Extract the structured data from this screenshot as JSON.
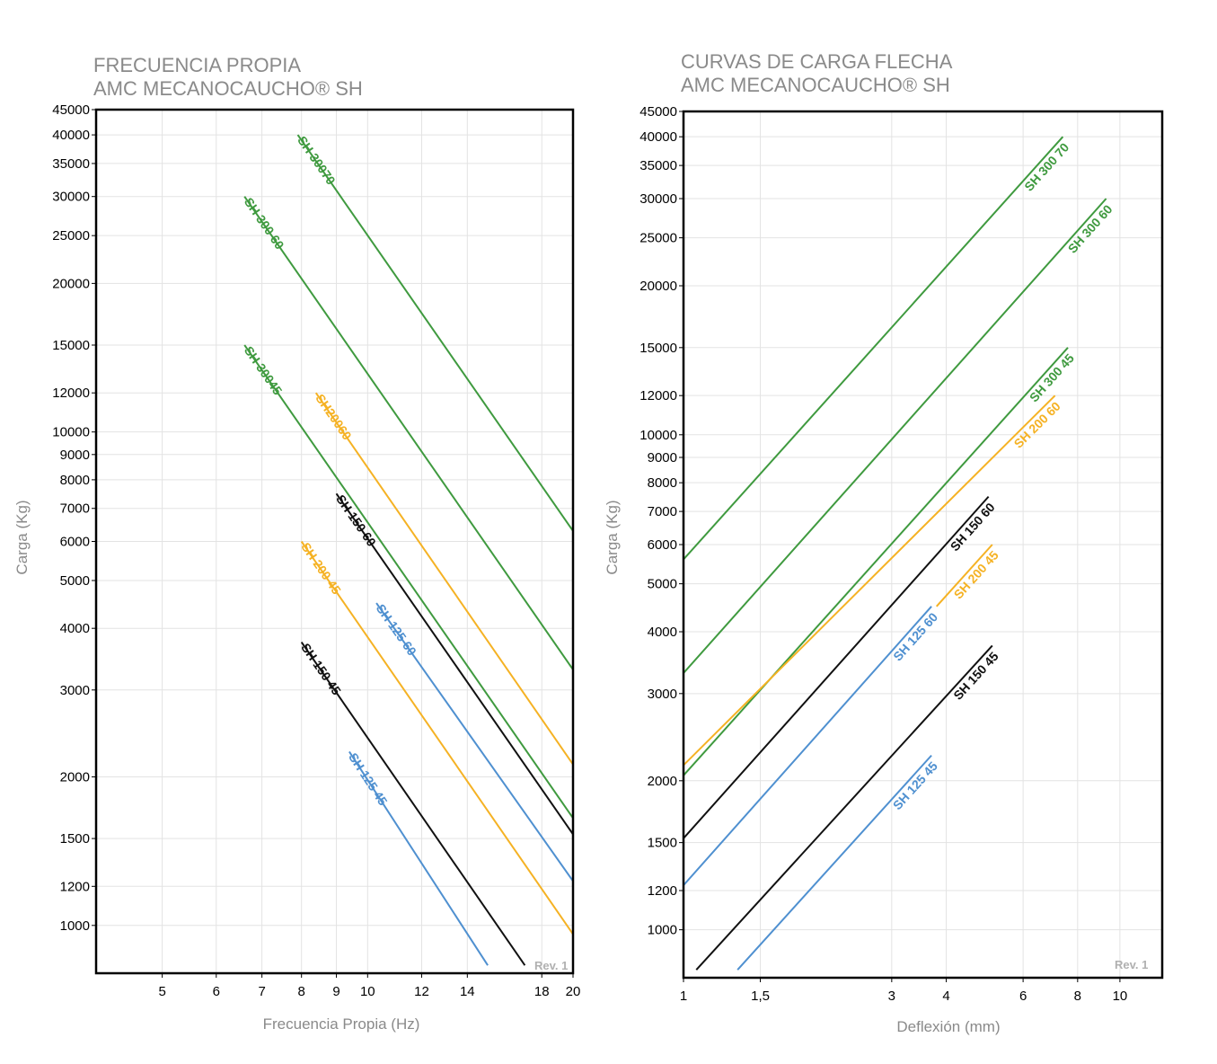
{
  "colors": {
    "green": "#3f9a3f",
    "orange": "#f5b224",
    "black": "#111111",
    "blue": "#4f90d0",
    "grid": "#e3e3e3",
    "title": "#8a8a8a"
  },
  "chart_data": [
    {
      "type": "line",
      "title": "FRECUENCIA PROPIA",
      "subtitle": "AMC MECANOCAUCHO® SH",
      "xlabel": "Frecuencia Propia (Hz)",
      "ylabel": "Carga (Kg)",
      "x_scale": "log",
      "y_scale": "log",
      "xlim": [
        4,
        20
      ],
      "ylim": [
        800,
        45000
      ],
      "x_ticks": [
        5,
        6,
        7,
        8,
        9,
        10,
        12,
        14,
        18,
        20
      ],
      "y_ticks": [
        1000,
        1200,
        1500,
        2000,
        3000,
        4000,
        5000,
        6000,
        7000,
        8000,
        9000,
        10000,
        12000,
        15000,
        20000,
        25000,
        30000,
        35000,
        40000,
        45000
      ],
      "note": "Rev. 1",
      "series": [
        {
          "name": "SH 30070",
          "color": "green",
          "points": [
            [
              7.9,
              40000
            ],
            [
              20,
              6300
            ]
          ]
        },
        {
          "name": "SH 300 60",
          "color": "green",
          "points": [
            [
              6.6,
              30000
            ],
            [
              20,
              3300
            ]
          ]
        },
        {
          "name": "SH 30045",
          "color": "green",
          "points": [
            [
              6.6,
              15000
            ],
            [
              20,
              1650
            ]
          ]
        },
        {
          "name": "SH20060",
          "color": "orange",
          "points": [
            [
              8.4,
              12000
            ],
            [
              20,
              2120
            ]
          ]
        },
        {
          "name": "SH 150 60",
          "color": "black",
          "points": [
            [
              9.0,
              7500
            ],
            [
              20,
              1530
            ]
          ]
        },
        {
          "name": "SH 200 45",
          "color": "orange",
          "points": [
            [
              8.0,
              6000
            ],
            [
              20,
              960
            ]
          ]
        },
        {
          "name": "SH 125 60",
          "color": "blue",
          "points": [
            [
              10.3,
              4500
            ],
            [
              20,
              1230
            ]
          ]
        },
        {
          "name": "SH 150 45",
          "color": "black",
          "points": [
            [
              8.0,
              3750
            ],
            [
              17.0,
              830
            ]
          ]
        },
        {
          "name": "SH 125 45",
          "color": "blue",
          "points": [
            [
              9.4,
              2250
            ],
            [
              15.0,
              830
            ]
          ]
        }
      ]
    },
    {
      "type": "line",
      "title": "CURVAS DE CARGA FLECHA",
      "subtitle": "AMC MECANOCAUCHO® SH",
      "xlabel": "Deflexión (mm)",
      "ylabel": "Carga (Kg)",
      "x_scale": "log",
      "y_scale": "log",
      "xlim": [
        1,
        12.5
      ],
      "ylim": [
        800,
        45000
      ],
      "x_ticks": [
        1,
        1.5,
        3,
        4,
        6,
        8,
        10
      ],
      "x_tick_labels": [
        "1",
        "1,5",
        "3",
        "4",
        "6",
        "8",
        "10"
      ],
      "y_ticks": [
        1000,
        1200,
        1500,
        2000,
        3000,
        4000,
        5000,
        6000,
        7000,
        8000,
        9000,
        10000,
        12000,
        15000,
        20000,
        25000,
        30000,
        35000,
        40000,
        45000
      ],
      "note": "Rev. 1",
      "series": [
        {
          "name": "SH 300 70",
          "color": "green",
          "points": [
            [
              1.0,
              5600
            ],
            [
              7.4,
              40000
            ]
          ]
        },
        {
          "name": "SH 300 60",
          "color": "green",
          "points": [
            [
              1.0,
              3300
            ],
            [
              9.3,
              30000
            ]
          ]
        },
        {
          "name": "SH 300 45",
          "color": "green",
          "points": [
            [
              1.0,
              2050
            ],
            [
              7.6,
              15000
            ]
          ]
        },
        {
          "name": "SH 200 60",
          "color": "orange",
          "points": [
            [
              1.0,
              2150
            ],
            [
              7.1,
              12000
            ]
          ]
        },
        {
          "name": "SH 150 60",
          "color": "black",
          "points": [
            [
              1.0,
              1530
            ],
            [
              5.0,
              7500
            ]
          ]
        },
        {
          "name": "SH 200 45",
          "color": "orange",
          "points": [
            [
              3.8,
              4500
            ],
            [
              5.1,
              6000
            ]
          ]
        },
        {
          "name": "SH 125 60",
          "color": "blue",
          "points": [
            [
              1.0,
              1230
            ],
            [
              3.7,
              4500
            ]
          ]
        },
        {
          "name": "SH 150 45",
          "color": "black",
          "points": [
            [
              1.07,
              830
            ],
            [
              5.1,
              3750
            ]
          ]
        },
        {
          "name": "SH 125 45",
          "color": "blue",
          "points": [
            [
              1.33,
              830
            ],
            [
              3.7,
              2250
            ]
          ]
        }
      ]
    }
  ]
}
